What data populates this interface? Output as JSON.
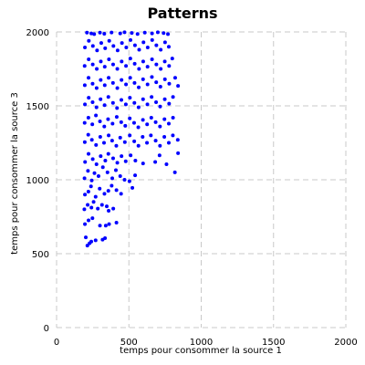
{
  "chart_data": {
    "type": "scatter",
    "title": "Patterns",
    "xlabel": "temps pour consommer la source 1",
    "ylabel": "temps pour consommer la source 3",
    "xlim": [
      0,
      2000
    ],
    "ylim": [
      0,
      2000
    ],
    "xticks": [
      0,
      500,
      1000,
      1500,
      2000
    ],
    "yticks": [
      0,
      500,
      1000,
      1500,
      2000
    ],
    "x_tick_labels": [
      "0",
      "500",
      "1000",
      "1500",
      "2000"
    ],
    "y_tick_labels": [
      "0",
      "500",
      "1000",
      "1500",
      "2000"
    ],
    "grid": true,
    "legend": false,
    "point_color": "#0000ff",
    "series": [
      {
        "points": [
          [
            213,
            555
          ],
          [
            228,
            570
          ],
          [
            202,
            610
          ],
          [
            240,
            582
          ],
          [
            270,
            590
          ],
          [
            318,
            595
          ],
          [
            335,
            605
          ],
          [
            196,
            700
          ],
          [
            221,
            725
          ],
          [
            248,
            740
          ],
          [
            300,
            690
          ],
          [
            340,
            690
          ],
          [
            363,
            700
          ],
          [
            414,
            710
          ],
          [
            192,
            800
          ],
          [
            215,
            830
          ],
          [
            241,
            812
          ],
          [
            256,
            850
          ],
          [
            285,
            805
          ],
          [
            314,
            830
          ],
          [
            347,
            820
          ],
          [
            360,
            790
          ],
          [
            392,
            805
          ],
          [
            196,
            900
          ],
          [
            220,
            920
          ],
          [
            238,
            955
          ],
          [
            270,
            885
          ],
          [
            298,
            940
          ],
          [
            331,
            905
          ],
          [
            358,
            925
          ],
          [
            381,
            960
          ],
          [
            414,
            930
          ],
          [
            446,
            905
          ],
          [
            193,
            1010
          ],
          [
            217,
            1060
          ],
          [
            243,
            995
          ],
          [
            262,
            1045
          ],
          [
            290,
            1025
          ],
          [
            320,
            1085
          ],
          [
            352,
            1050
          ],
          [
            385,
            1010
          ],
          [
            410,
            1065
          ],
          [
            440,
            1025
          ],
          [
            470,
            1000
          ],
          [
            504,
            990
          ],
          [
            524,
            945
          ],
          [
            543,
            1030
          ],
          [
            197,
            1120
          ],
          [
            221,
            1175
          ],
          [
            250,
            1140
          ],
          [
            276,
            1105
          ],
          [
            305,
            1160
          ],
          [
            337,
            1130
          ],
          [
            358,
            1175
          ],
          [
            391,
            1145
          ],
          [
            420,
            1115
          ],
          [
            449,
            1160
          ],
          [
            478,
            1125
          ],
          [
            512,
            1165
          ],
          [
            545,
            1130
          ],
          [
            598,
            1110
          ],
          [
            682,
            1120
          ],
          [
            712,
            1165
          ],
          [
            760,
            1105
          ],
          [
            818,
            1050
          ],
          [
            840,
            1180
          ],
          [
            195,
            1255
          ],
          [
            219,
            1305
          ],
          [
            244,
            1270
          ],
          [
            273,
            1235
          ],
          [
            302,
            1290
          ],
          [
            328,
            1250
          ],
          [
            360,
            1300
          ],
          [
            384,
            1265
          ],
          [
            413,
            1230
          ],
          [
            440,
            1285
          ],
          [
            472,
            1255
          ],
          [
            506,
            1300
          ],
          [
            537,
            1260
          ],
          [
            566,
            1230
          ],
          [
            595,
            1290
          ],
          [
            625,
            1250
          ],
          [
            652,
            1300
          ],
          [
            685,
            1265
          ],
          [
            715,
            1230
          ],
          [
            745,
            1290
          ],
          [
            776,
            1250
          ],
          [
            804,
            1300
          ],
          [
            838,
            1270
          ],
          [
            194,
            1385
          ],
          [
            220,
            1420
          ],
          [
            247,
            1375
          ],
          [
            272,
            1435
          ],
          [
            300,
            1395
          ],
          [
            330,
            1360
          ],
          [
            356,
            1410
          ],
          [
            387,
            1380
          ],
          [
            416,
            1425
          ],
          [
            447,
            1390
          ],
          [
            475,
            1365
          ],
          [
            506,
            1415
          ],
          [
            536,
            1385
          ],
          [
            565,
            1355
          ],
          [
            597,
            1405
          ],
          [
            626,
            1375
          ],
          [
            655,
            1420
          ],
          [
            685,
            1390
          ],
          [
            715,
            1360
          ],
          [
            746,
            1410
          ],
          [
            776,
            1380
          ],
          [
            805,
            1420
          ],
          [
            196,
            1510
          ],
          [
            222,
            1555
          ],
          [
            249,
            1525
          ],
          [
            276,
            1490
          ],
          [
            304,
            1545
          ],
          [
            332,
            1505
          ],
          [
            358,
            1560
          ],
          [
            390,
            1520
          ],
          [
            418,
            1485
          ],
          [
            448,
            1540
          ],
          [
            479,
            1510
          ],
          [
            507,
            1555
          ],
          [
            538,
            1520
          ],
          [
            567,
            1490
          ],
          [
            598,
            1545
          ],
          [
            628,
            1510
          ],
          [
            657,
            1560
          ],
          [
            688,
            1525
          ],
          [
            716,
            1495
          ],
          [
            748,
            1545
          ],
          [
            778,
            1515
          ],
          [
            805,
            1560
          ],
          [
            195,
            1640
          ],
          [
            221,
            1690
          ],
          [
            249,
            1650
          ],
          [
            277,
            1620
          ],
          [
            305,
            1675
          ],
          [
            333,
            1640
          ],
          [
            360,
            1690
          ],
          [
            390,
            1655
          ],
          [
            420,
            1620
          ],
          [
            449,
            1675
          ],
          [
            480,
            1645
          ],
          [
            509,
            1690
          ],
          [
            539,
            1655
          ],
          [
            568,
            1625
          ],
          [
            598,
            1680
          ],
          [
            629,
            1645
          ],
          [
            659,
            1695
          ],
          [
            689,
            1660
          ],
          [
            718,
            1630
          ],
          [
            749,
            1680
          ],
          [
            779,
            1650
          ],
          [
            820,
            1690
          ],
          [
            840,
            1635
          ],
          [
            194,
            1770
          ],
          [
            222,
            1815
          ],
          [
            250,
            1780
          ],
          [
            278,
            1750
          ],
          [
            306,
            1800
          ],
          [
            333,
            1765
          ],
          [
            362,
            1815
          ],
          [
            391,
            1780
          ],
          [
            420,
            1750
          ],
          [
            450,
            1800
          ],
          [
            480,
            1770
          ],
          [
            510,
            1820
          ],
          [
            540,
            1785
          ],
          [
            570,
            1750
          ],
          [
            599,
            1800
          ],
          [
            629,
            1765
          ],
          [
            660,
            1815
          ],
          [
            690,
            1780
          ],
          [
            720,
            1750
          ],
          [
            748,
            1800
          ],
          [
            778,
            1770
          ],
          [
            800,
            1820
          ],
          [
            196,
            1895
          ],
          [
            223,
            1940
          ],
          [
            251,
            1905
          ],
          [
            280,
            1875
          ],
          [
            309,
            1925
          ],
          [
            336,
            1890
          ],
          [
            364,
            1940
          ],
          [
            393,
            1905
          ],
          [
            422,
            1875
          ],
          [
            452,
            1925
          ],
          [
            482,
            1895
          ],
          [
            511,
            1945
          ],
          [
            542,
            1910
          ],
          [
            571,
            1880
          ],
          [
            601,
            1930
          ],
          [
            630,
            1895
          ],
          [
            661,
            1945
          ],
          [
            690,
            1910
          ],
          [
            720,
            1880
          ],
          [
            750,
            1930
          ],
          [
            776,
            1900
          ],
          [
            210,
            1995
          ],
          [
            240,
            1990
          ],
          [
            260,
            1985
          ],
          [
            300,
            1995
          ],
          [
            330,
            1988
          ],
          [
            380,
            1996
          ],
          [
            440,
            1990
          ],
          [
            470,
            1998
          ],
          [
            520,
            1993
          ],
          [
            560,
            1986
          ],
          [
            610,
            1995
          ],
          [
            660,
            1990
          ],
          [
            700,
            1998
          ],
          [
            740,
            1992
          ],
          [
            770,
            1985
          ]
        ]
      }
    ]
  }
}
